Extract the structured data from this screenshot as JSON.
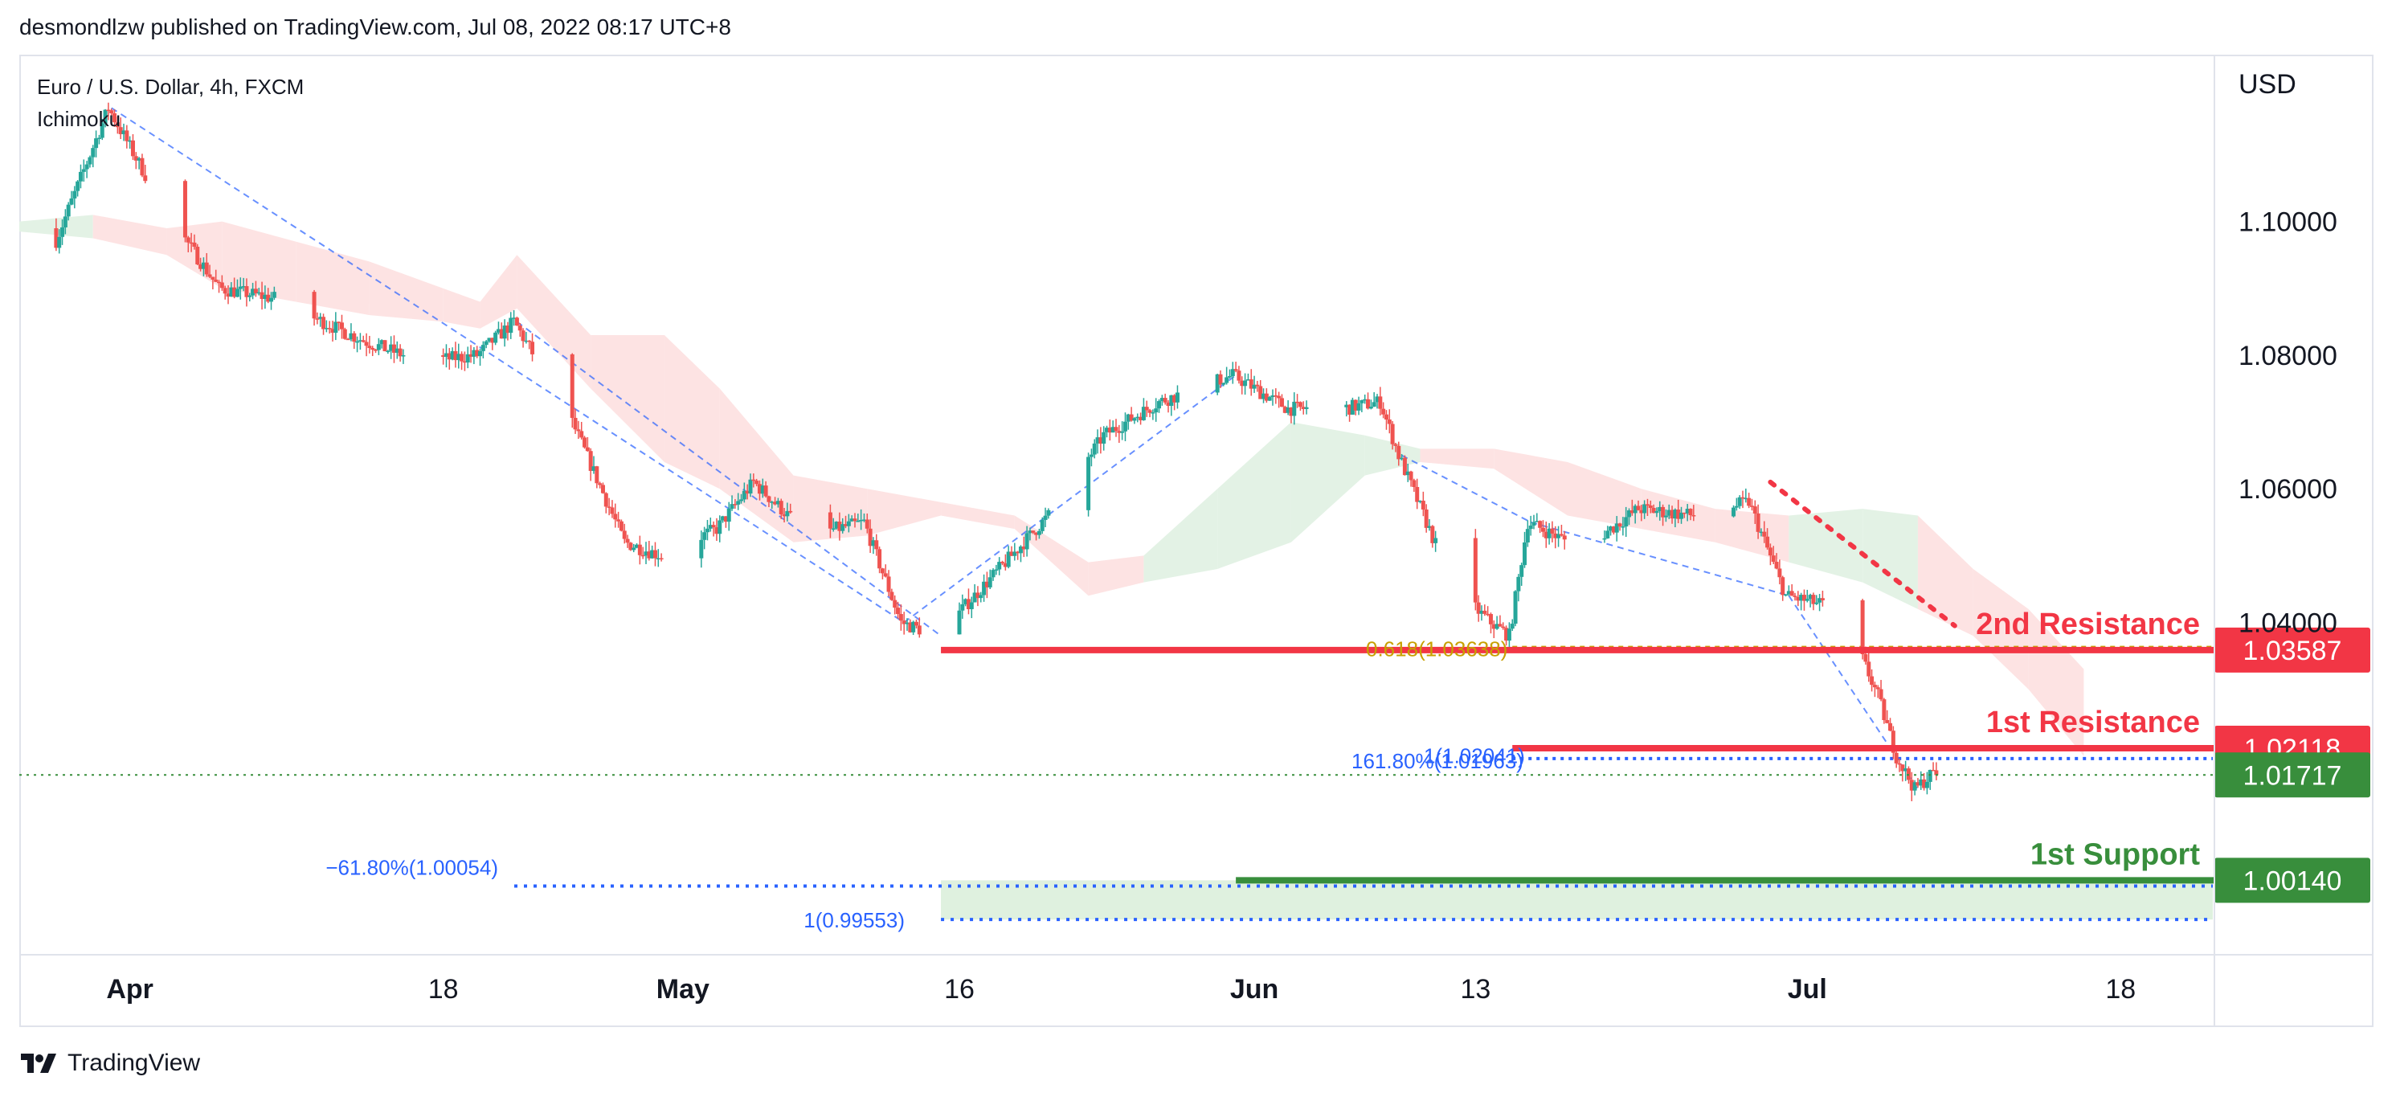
{
  "publisher_line": "desmondlzw published on TradingView.com, Jul 08, 2022 08:17 UTC+8",
  "symbol_title": "Euro / U.S. Dollar, 4h, FXCM",
  "indicator": "Ichimoku",
  "brand": "TradingView",
  "chart_data": {
    "type": "candlestick",
    "title": "Euro / U.S. Dollar, 4h, FXCM",
    "currency_label": "USD",
    "x_ticks": [
      {
        "label": "Apr",
        "date": "2022-04-01",
        "bold": true
      },
      {
        "label": "18",
        "date": "2022-04-18",
        "bold": false
      },
      {
        "label": "May",
        "date": "2022-05-01",
        "bold": true
      },
      {
        "label": "16",
        "date": "2022-05-16",
        "bold": false
      },
      {
        "label": "Jun",
        "date": "2022-06-01",
        "bold": true
      },
      {
        "label": "13",
        "date": "2022-06-13",
        "bold": false
      },
      {
        "label": "Jul",
        "date": "2022-07-01",
        "bold": true
      },
      {
        "label": "18",
        "date": "2022-07-18",
        "bold": false
      }
    ],
    "x_range": [
      "2022-03-26",
      "2022-07-23"
    ],
    "y_ticks": [
      "1.10000",
      "1.08000",
      "1.06000",
      "1.04000"
    ],
    "y_range": [
      0.9905,
      1.1245
    ],
    "price_path": [
      [
        "2022-03-26",
        1.099
      ],
      [
        "2022-03-28",
        1.096
      ],
      [
        "2022-03-31",
        1.117
      ],
      [
        "2022-04-03",
        1.102
      ],
      [
        "2022-04-06",
        1.09
      ],
      [
        "2022-04-09",
        1.0885
      ],
      [
        "2022-04-12",
        1.0845
      ],
      [
        "2022-04-14",
        1.082
      ],
      [
        "2022-04-17",
        1.079
      ],
      [
        "2022-04-20",
        1.08
      ],
      [
        "2022-04-22",
        1.085
      ],
      [
        "2022-04-25",
        1.071
      ],
      [
        "2022-04-28",
        1.052
      ],
      [
        "2022-04-30",
        1.05
      ],
      [
        "2022-05-03",
        1.054
      ],
      [
        "2022-05-05",
        1.061
      ],
      [
        "2022-05-08",
        1.053
      ],
      [
        "2022-05-11",
        1.055
      ],
      [
        "2022-05-13",
        1.04
      ],
      [
        "2022-05-15",
        1.038
      ],
      [
        "2022-05-18",
        1.047
      ],
      [
        "2022-05-21",
        1.056
      ],
      [
        "2022-05-24",
        1.068
      ],
      [
        "2022-05-27",
        1.073
      ],
      [
        "2022-05-31",
        1.077
      ],
      [
        "2022-06-03",
        1.072
      ],
      [
        "2022-06-06",
        1.072
      ],
      [
        "2022-06-08",
        1.073
      ],
      [
        "2022-06-09",
        1.065
      ],
      [
        "2022-06-12",
        1.045
      ],
      [
        "2022-06-14",
        1.04
      ],
      [
        "2022-06-15",
        1.038
      ],
      [
        "2022-06-16",
        1.055
      ],
      [
        "2022-06-19",
        1.051
      ],
      [
        "2022-06-22",
        1.057
      ],
      [
        "2022-06-25",
        1.056
      ],
      [
        "2022-06-28",
        1.058
      ],
      [
        "2022-06-30",
        1.044
      ],
      [
        "2022-07-03",
        1.042
      ],
      [
        "2022-07-05",
        1.029
      ],
      [
        "2022-07-06",
        1.02
      ],
      [
        "2022-07-07",
        1.015
      ],
      [
        "2022-07-08",
        1.0175
      ]
    ],
    "ichimoku_cloud": [
      [
        "2022-03-26",
        1.1,
        1.0985,
        "green"
      ],
      [
        "2022-03-30",
        1.101,
        1.0975,
        "red"
      ],
      [
        "2022-04-03",
        1.099,
        1.095,
        "red"
      ],
      [
        "2022-04-06",
        1.1,
        1.09,
        "red"
      ],
      [
        "2022-04-10",
        1.097,
        1.088,
        "red"
      ],
      [
        "2022-04-14",
        1.094,
        1.086,
        "red"
      ],
      [
        "2022-04-18",
        1.09,
        1.085,
        "red"
      ],
      [
        "2022-04-20",
        1.088,
        1.084,
        "red"
      ],
      [
        "2022-04-22",
        1.095,
        1.087,
        "red"
      ],
      [
        "2022-04-26",
        1.083,
        1.075,
        "red"
      ],
      [
        "2022-04-30",
        1.083,
        1.064,
        "red"
      ],
      [
        "2022-05-03",
        1.075,
        1.06,
        "red"
      ],
      [
        "2022-05-07",
        1.062,
        1.052,
        "red"
      ],
      [
        "2022-05-11",
        1.06,
        1.053,
        "red"
      ],
      [
        "2022-05-15",
        1.058,
        1.056,
        "red"
      ],
      [
        "2022-05-19",
        1.056,
        1.054,
        "red"
      ],
      [
        "2022-05-23",
        1.049,
        1.044,
        "red"
      ],
      [
        "2022-05-26",
        1.05,
        1.046,
        "green"
      ],
      [
        "2022-05-30",
        1.06,
        1.048,
        "green"
      ],
      [
        "2022-06-03",
        1.07,
        1.052,
        "green"
      ],
      [
        "2022-06-07",
        1.068,
        1.062,
        "green"
      ],
      [
        "2022-06-10",
        1.066,
        1.064,
        "red"
      ],
      [
        "2022-06-14",
        1.066,
        1.063,
        "red"
      ],
      [
        "2022-06-18",
        1.064,
        1.056,
        "red"
      ],
      [
        "2022-06-22",
        1.06,
        1.054,
        "red"
      ],
      [
        "2022-06-26",
        1.057,
        1.052,
        "red"
      ],
      [
        "2022-06-30",
        1.056,
        1.049,
        "green"
      ],
      [
        "2022-07-04",
        1.057,
        1.046,
        "green"
      ],
      [
        "2022-07-07",
        1.056,
        1.042,
        "red"
      ],
      [
        "2022-07-10",
        1.048,
        1.038,
        "red"
      ],
      [
        "2022-07-13",
        1.042,
        1.03,
        "red"
      ],
      [
        "2022-07-16",
        1.033,
        1.02,
        "red"
      ]
    ],
    "price_lines": [
      {
        "name": "2nd Resistance",
        "value": 1.03587,
        "price_label": "1.03587",
        "start": "2022-05-15",
        "color": "#f23645",
        "style": "solid"
      },
      {
        "name": "1st Resistance",
        "value": 1.02118,
        "price_label": "1.02118",
        "start": "2022-06-15",
        "color": "#f23645",
        "style": "solid"
      },
      {
        "name": "1st Support",
        "value": 1.0014,
        "price_label": "1.00140",
        "start": "2022-05-31",
        "color": "#388e3c",
        "style": "solid"
      },
      {
        "name": "current",
        "value": 1.01717,
        "price_label": "1.01717",
        "start": "2022-03-26",
        "color": "#388e3c",
        "style": "dotted"
      }
    ],
    "annotations": [
      {
        "text": "0.618(1.03638)",
        "date": "2022-06-15",
        "value": 1.03638,
        "color": "#c8a000"
      },
      {
        "text": "161.80%(1.01963)",
        "date": "2022-06-15",
        "value": 1.01963,
        "color": "#2962ff"
      },
      {
        "text": "1(1.02041)",
        "date": "2022-06-15",
        "value": 1.02041,
        "color": "#2962ff"
      },
      {
        "text": "−61.80%(1.00054)",
        "date": "2022-04-25",
        "value": 1.00054,
        "color": "#2962ff"
      },
      {
        "text": "1(0.99553)",
        "date": "2022-05-15",
        "value": 0.99553,
        "color": "#2962ff"
      }
    ],
    "colors": {
      "up": "#26a69a",
      "down": "#ef5350",
      "cloud_red": "#fde3e3",
      "cloud_green": "#e3f2e5",
      "support_zone": "#dff1df",
      "fib_blue": "#2962ff"
    }
  }
}
